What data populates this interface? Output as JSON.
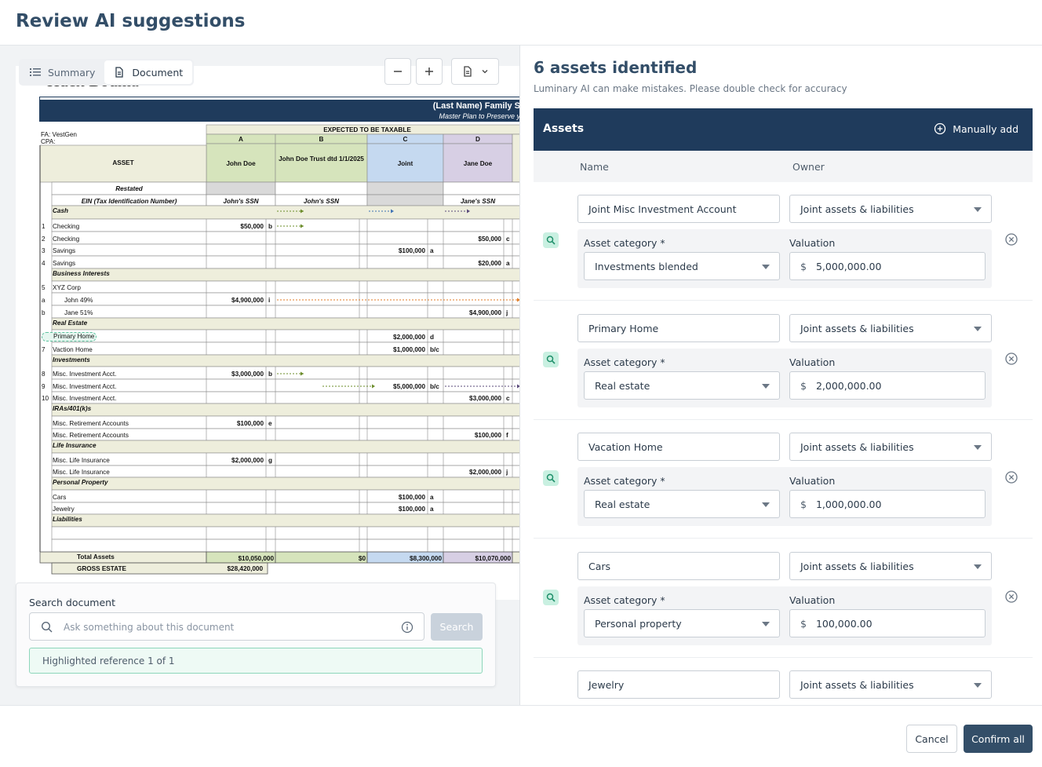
{
  "header": {
    "title": "Review AI suggestions"
  },
  "viewer": {
    "tabs": [
      {
        "label": "Summary"
      },
      {
        "label": "Document"
      }
    ],
    "document": {
      "firm": "Huck Bouma",
      "title": "(Last Name) Family S",
      "subtitle": "Master Plan to Preserve y",
      "fa": "FA: VestGen",
      "cpa": "CPA:",
      "taxable_header": "EXPECTED TO BE TAXABLE",
      "col_letters": [
        "A",
        "B",
        "C",
        "D"
      ],
      "col_names": [
        "John Doe",
        "John Doe Trust dtd 1/1/2025",
        "Joint",
        "Jane Doe"
      ],
      "asset_label": "ASSET",
      "restated": "Restated",
      "ein_label": "EIN (Tax Identification Number)",
      "ssn": [
        "John's SSN",
        "John's SSN",
        "Jane's SSN"
      ],
      "rows": [
        {
          "num": "",
          "label": "Cash",
          "section": true
        },
        {
          "num": "1",
          "label": "Checking",
          "a": "$50,000",
          "a_n": "b"
        },
        {
          "num": "2",
          "label": "Checking",
          "d": "$50,000",
          "d_n": "c"
        },
        {
          "num": "3",
          "label": "Savings",
          "c": "$100,000",
          "c_n": "a"
        },
        {
          "num": "4",
          "label": "Savings",
          "d": "$20,000",
          "d_n": "a"
        },
        {
          "num": "",
          "label": "Business Interests",
          "section": true
        },
        {
          "num": "5",
          "label": "XYZ Corp"
        },
        {
          "num": "a",
          "label": "John 49%",
          "a": "$4,900,000",
          "a_n": "i",
          "indent": true
        },
        {
          "num": "b",
          "label": "Jane 51%",
          "d": "$4,900,000",
          "d_n": "j",
          "indent": true
        },
        {
          "num": "",
          "label": "Real Estate",
          "section": true
        },
        {
          "num": "6",
          "label": "Primary Home",
          "c": "$2,000,000",
          "c_n": "d",
          "highlight": true
        },
        {
          "num": "7",
          "label": "Vaction Home",
          "c": "$1,000,000",
          "c_n": "b/c"
        },
        {
          "num": "",
          "label": "Investments",
          "section": true
        },
        {
          "num": "8",
          "label": "Misc. Investment Acct.",
          "a": "$3,000,000",
          "a_n": "b"
        },
        {
          "num": "9",
          "label": "Misc. Investment Acct.",
          "c": "$5,000,000",
          "c_n": "b/c"
        },
        {
          "num": "10",
          "label": "Misc. Investment Acct.",
          "d": "$3,000,000",
          "d_n": "c"
        },
        {
          "num": "",
          "label": "IRAs/401(k)s",
          "section": true
        },
        {
          "num": "",
          "label": "Misc. Retirement Accounts",
          "a": "$100,000",
          "a_n": "e"
        },
        {
          "num": "",
          "label": "Misc. Retirement Accounts",
          "d": "$100,000",
          "d_n": "f"
        },
        {
          "num": "",
          "label": "Life Insurance",
          "section": true
        },
        {
          "num": "",
          "label": "Misc. Life Insurance",
          "a": "$2,000,000",
          "a_n": "g"
        },
        {
          "num": "",
          "label": "Misc. Life Insurance",
          "d": "$2,000,000",
          "d_n": "j"
        },
        {
          "num": "",
          "label": "Personal Property",
          "section": true
        },
        {
          "num": "",
          "label": "Cars",
          "c": "$100,000",
          "c_n": "a"
        },
        {
          "num": "",
          "label": "Jewelry",
          "c": "$100,000",
          "c_n": "a"
        },
        {
          "num": "",
          "label": "Liabilities",
          "section": true
        },
        {
          "num": "",
          "label": ""
        },
        {
          "num": "",
          "label": ""
        }
      ],
      "totals": {
        "label": "Total Assets",
        "a": "$10,050,000",
        "b": "$0",
        "c": "$8,300,000",
        "d": "$10,070,000"
      },
      "gross": {
        "label": "GROSS ESTATE",
        "value": "$28,420,000"
      }
    },
    "search": {
      "label": "Search document",
      "placeholder": "Ask something about this document",
      "button": "Search",
      "reference": "Highlighted reference 1 of 1"
    }
  },
  "panel": {
    "title": "6 assets identified",
    "subtitle": "Luminary AI can make mistakes. Please double check for accuracy",
    "section_label": "Assets",
    "add_label": "Manually add",
    "col_name": "Name",
    "col_owner": "Owner",
    "category_label": "Asset category *",
    "valuation_label": "Valuation",
    "currency": "$",
    "assets": [
      {
        "name": "Joint Misc Investment Account",
        "owner": "Joint assets & liabilities",
        "category": "Investments blended",
        "valuation": "5,000,000.00"
      },
      {
        "name": "Primary Home",
        "owner": "Joint assets & liabilities",
        "category": "Real estate",
        "valuation": "2,000,000.00"
      },
      {
        "name": "Vacation Home",
        "owner": "Joint assets & liabilities",
        "category": "Real estate",
        "valuation": "1,000,000.00"
      },
      {
        "name": "Cars",
        "owner": "Joint assets & liabilities",
        "category": "Personal property",
        "valuation": "100,000.00"
      },
      {
        "name": "Jewelry",
        "owner": "Joint assets & liabilities",
        "category": "",
        "valuation": ""
      }
    ]
  },
  "footer": {
    "cancel": "Cancel",
    "confirm": "Confirm all"
  }
}
